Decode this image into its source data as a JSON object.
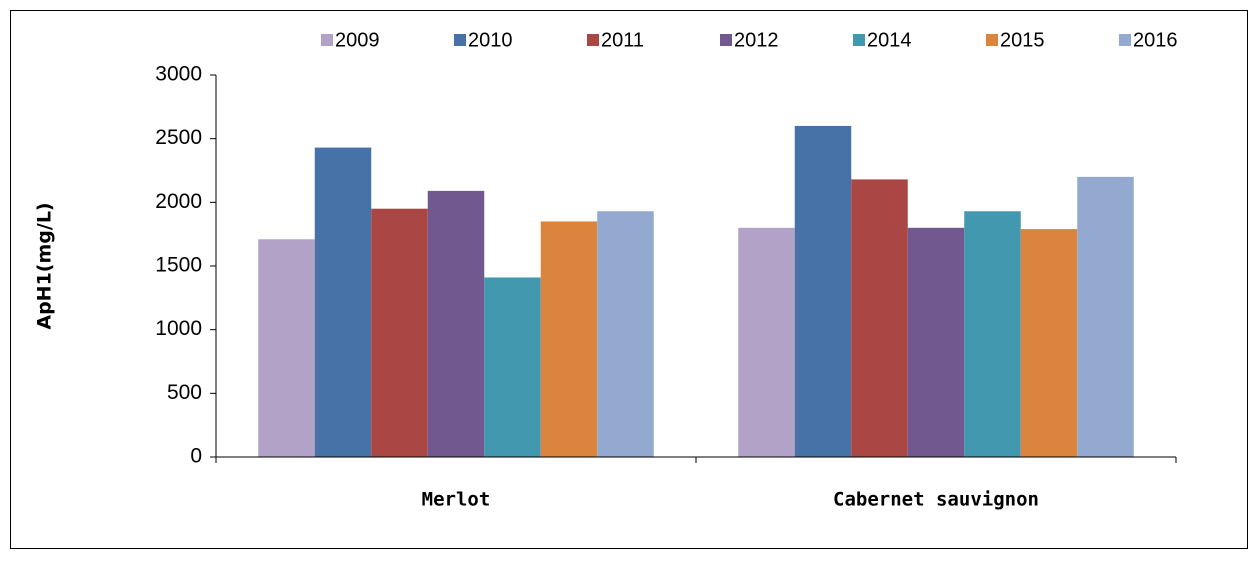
{
  "chart_data": {
    "type": "bar",
    "y_label": "ApH1(mg/L)",
    "categories": [
      "Merlot",
      "Cabernet sauvignon"
    ],
    "series": [
      {
        "name": "2009",
        "color": "#b3a2c7",
        "values": [
          1710,
          1800
        ]
      },
      {
        "name": "2010",
        "color": "#4672a8",
        "values": [
          2430,
          2600
        ]
      },
      {
        "name": "2011",
        "color": "#aa4643",
        "values": [
          1950,
          2180
        ]
      },
      {
        "name": "2012",
        "color": "#71588f",
        "values": [
          2090,
          1800
        ]
      },
      {
        "name": "2014",
        "color": "#4198af",
        "values": [
          1410,
          1930
        ]
      },
      {
        "name": "2015",
        "color": "#db843d",
        "values": [
          1850,
          1790
        ]
      },
      {
        "name": "2016",
        "color": "#93a9cf",
        "values": [
          1930,
          2200
        ]
      }
    ],
    "ylim": [
      0,
      3000
    ],
    "yticks": [
      0,
      500,
      1000,
      1500,
      2000,
      2500,
      3000
    ],
    "grid": false,
    "legend": "top"
  }
}
